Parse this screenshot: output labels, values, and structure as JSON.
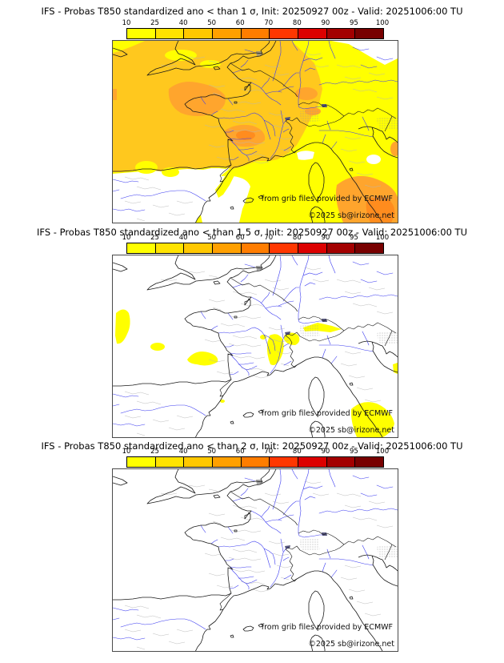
{
  "panels": [
    {
      "title": "IFS - Probas T850  standardized ano < than 1 σ, Init: 20250927 00z - Valid: 20251006:00 TU",
      "threshold_sigma": "1"
    },
    {
      "title": "IFS - Probas T850  standardized ano < than 1.5 σ, Init: 20250927 00z - Valid: 20251006:00 TU",
      "threshold_sigma": "1.5"
    },
    {
      "title": "IFS - Probas T850  standardized ano < than 2 σ, Init: 20250927 00z - Valid: 20251006:00 TU",
      "threshold_sigma": "2"
    }
  ],
  "colorbar": {
    "tick_labels": [
      "10",
      "25",
      "40",
      "50",
      "60",
      "70",
      "80",
      "90",
      "95",
      "100"
    ],
    "segment_colors": [
      "#ffff00",
      "#ffe300",
      "#ffc800",
      "#ffa000",
      "#ff7d00",
      "#ff3700",
      "#dc0000",
      "#a30000",
      "#780000"
    ]
  },
  "attribution": {
    "source_note": "from grib files provided by ECMWF",
    "copyright": "©2025 sb@irizone.net"
  },
  "map_colors": {
    "sea": "#ffffff",
    "prob_low_yellow": "#ffff00",
    "prob_base_gold": "#ffc81e",
    "prob_orange_patch": "#ffa52d",
    "prob_deep_orange": "#ff8c1e",
    "coast_line": "#1a1a1a",
    "river_line": "#3c3cf0",
    "admin_line": "#b5b5b5"
  }
}
